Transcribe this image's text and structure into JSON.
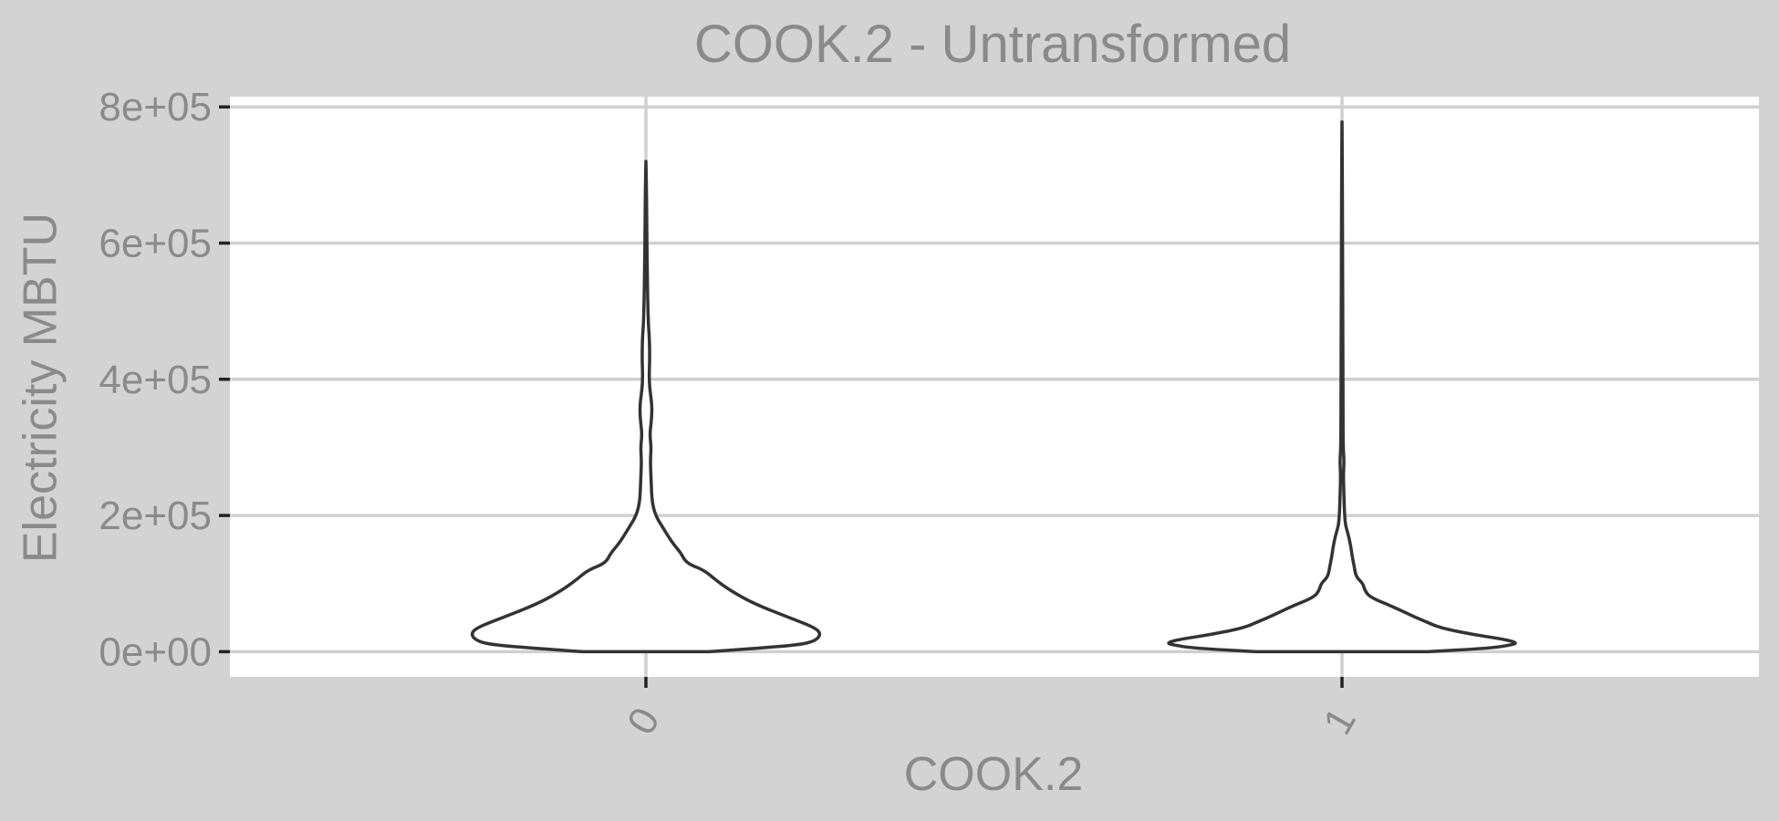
{
  "chart_data": {
    "type": "violin",
    "title": "COOK.2 - Untransformed",
    "xlabel": "COOK.2",
    "ylabel": "Electricity MBTU",
    "categories": [
      "0",
      "1"
    ],
    "ylim": [
      -37000,
      815000
    ],
    "yticks": [
      0,
      200000,
      400000,
      600000,
      800000
    ],
    "ytick_labels": [
      "0e+00",
      "2e+05",
      "4e+05",
      "6e+05",
      "8e+05"
    ],
    "grid": true,
    "legend": "none",
    "colors": {
      "panel_bg": "#ffffff",
      "plot_bg": "#d3d3d3",
      "outline": "#333333",
      "grid": "#d0d0d0",
      "text": "#8a8a8a"
    },
    "violins": [
      {
        "category": "0",
        "min": 0,
        "max": 720000,
        "half_width_profile": [
          [
            0,
            0.36
          ],
          [
            5000,
            0.64
          ],
          [
            10000,
            0.87
          ],
          [
            15000,
            0.96
          ],
          [
            25000,
            1.0
          ],
          [
            35000,
            0.97
          ],
          [
            50000,
            0.82
          ],
          [
            70000,
            0.62
          ],
          [
            90000,
            0.48
          ],
          [
            105000,
            0.4
          ],
          [
            120000,
            0.33
          ],
          [
            130000,
            0.23
          ],
          [
            145000,
            0.2
          ],
          [
            160000,
            0.15
          ],
          [
            185000,
            0.09
          ],
          [
            200000,
            0.055
          ],
          [
            220000,
            0.035
          ],
          [
            250000,
            0.03
          ],
          [
            280000,
            0.025
          ],
          [
            300000,
            0.03
          ],
          [
            320000,
            0.022
          ],
          [
            340000,
            0.032
          ],
          [
            360000,
            0.035
          ],
          [
            380000,
            0.025
          ],
          [
            400000,
            0.018
          ],
          [
            430000,
            0.022
          ],
          [
            460000,
            0.02
          ],
          [
            480000,
            0.014
          ],
          [
            520000,
            0.01
          ],
          [
            560000,
            0.008
          ],
          [
            620000,
            0.005
          ],
          [
            680000,
            0.003
          ],
          [
            720000,
            0.0
          ]
        ]
      },
      {
        "category": "1",
        "min": 0,
        "max": 778000,
        "half_width_profile": [
          [
            0,
            0.49
          ],
          [
            5000,
            0.84
          ],
          [
            10000,
            0.97
          ],
          [
            13000,
            1.0
          ],
          [
            18000,
            0.93
          ],
          [
            25000,
            0.75
          ],
          [
            35000,
            0.56
          ],
          [
            45000,
            0.47
          ],
          [
            55000,
            0.38
          ],
          [
            65000,
            0.3
          ],
          [
            80000,
            0.16
          ],
          [
            90000,
            0.13
          ],
          [
            100000,
            0.12
          ],
          [
            110000,
            0.08
          ],
          [
            125000,
            0.07
          ],
          [
            140000,
            0.058
          ],
          [
            155000,
            0.05
          ],
          [
            170000,
            0.038
          ],
          [
            185000,
            0.02
          ],
          [
            200000,
            0.015
          ],
          [
            220000,
            0.012
          ],
          [
            240000,
            0.01
          ],
          [
            260000,
            0.008
          ],
          [
            280000,
            0.012
          ],
          [
            300000,
            0.007
          ],
          [
            350000,
            0.006
          ],
          [
            400000,
            0.005
          ],
          [
            450000,
            0.005
          ],
          [
            500000,
            0.004
          ],
          [
            600000,
            0.003
          ],
          [
            700000,
            0.002
          ],
          [
            778000,
            0.0
          ]
        ]
      }
    ]
  }
}
